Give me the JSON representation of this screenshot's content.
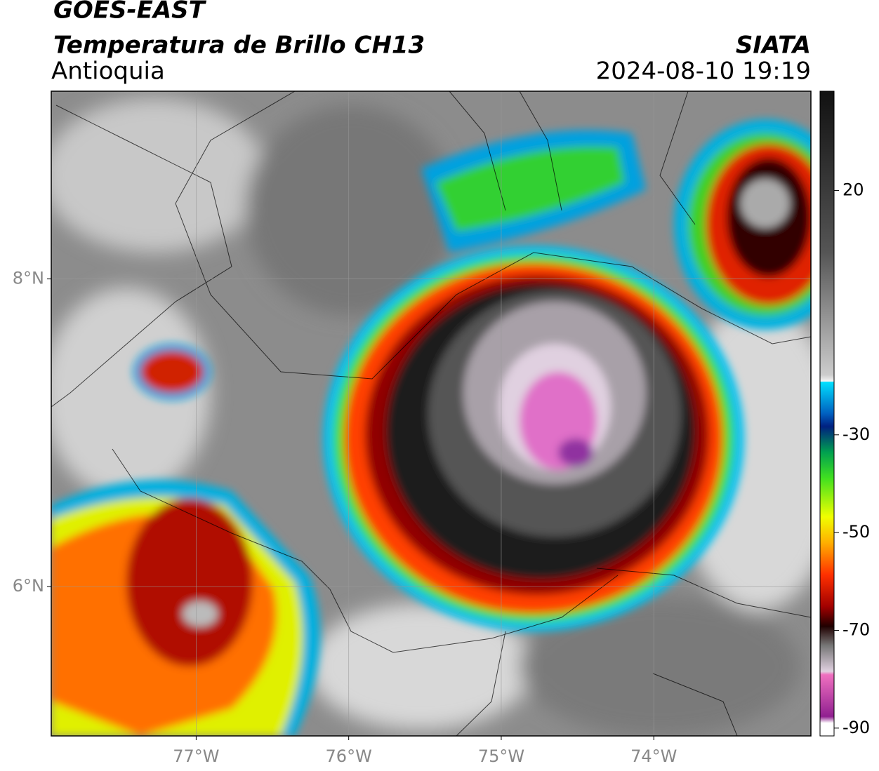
{
  "header": {
    "title": "GOES-EAST",
    "subtitle": "Temperatura de Brillo CH13",
    "region": "Antioquia",
    "source": "SIATA",
    "datetime": "2024-08-10 19:19"
  },
  "map": {
    "xlim": [
      -77.95,
      -72.97
    ],
    "ylim": [
      5.03,
      9.22
    ],
    "xticks": [
      {
        "value": -77,
        "label": "77°W"
      },
      {
        "value": -76,
        "label": "76°W"
      },
      {
        "value": -75,
        "label": "75°W"
      },
      {
        "value": -74,
        "label": "74°W"
      }
    ],
    "yticks": [
      {
        "value": 8,
        "label": "8°N"
      },
      {
        "value": 6,
        "label": "6°N"
      }
    ],
    "grid": true
  },
  "colorbar": {
    "lim": [
      -91.6,
      40.3
    ],
    "ticks": [
      20,
      -30,
      -50,
      -70,
      -90
    ]
  }
}
